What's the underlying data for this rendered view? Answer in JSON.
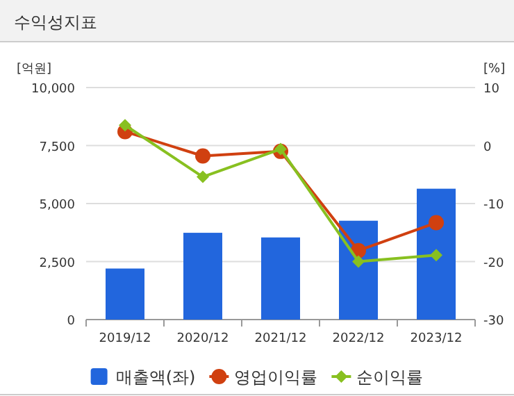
{
  "chart_data": {
    "type": "bar",
    "title": "수익성지표",
    "ylabel": "[억원]",
    "y2label": "[%]",
    "categories": [
      "2019/12",
      "2020/12",
      "2021/12",
      "2022/12",
      "2023/12"
    ],
    "series": [
      {
        "name": "매출액(좌)",
        "color": "#2266dd",
        "values": [
          2200,
          3740,
          3540,
          4260,
          5640
        ]
      },
      {
        "name": "영업이익률",
        "type": "line",
        "axis": "y2",
        "marker": "circle",
        "color": "#d04010",
        "values": [
          2.4,
          -1.8,
          -1.0,
          -18.1,
          -13.3
        ]
      },
      {
        "name": "순이익률",
        "type": "line",
        "axis": "y2",
        "marker": "diamond",
        "color": "#88c020",
        "values": [
          3.5,
          -5.4,
          -0.6,
          -20.0,
          -18.9
        ]
      }
    ],
    "ylim": [
      0,
      10000
    ],
    "yticks": [
      {
        "value": 0,
        "label": "0"
      },
      {
        "value": 2500,
        "label": "2,500"
      },
      {
        "value": 5000,
        "label": "5,000"
      },
      {
        "value": 7500,
        "label": "7,500"
      },
      {
        "value": 10000,
        "label": "10,000"
      }
    ],
    "y2lim": [
      -30,
      10
    ],
    "y2ticks": [
      -30,
      -20,
      -10,
      0,
      10
    ],
    "grid": "y",
    "legend": "bottom"
  }
}
